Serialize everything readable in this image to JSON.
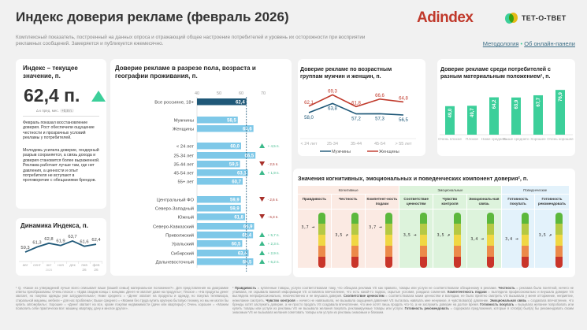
{
  "header": {
    "title": "Индекс доверия рекламе (февраль 2026)",
    "subtitle": "Комплексный показатель, построенный на данных опроса и отражающий общее настроение потребителей и уровень их осторожности при восприятии рекламных сообщений. Замеряется и публикуется ежемесячно.",
    "logo_adindex": "Adindex",
    "logo_tet": "ТЕТ-О-ТВЕТ",
    "link_methodology": "Методология",
    "link_separator": "•",
    "link_panel": "Об онлайн-панели"
  },
  "colors": {
    "accent_green": "#3ccf9a",
    "dark_blue": "#1f5878",
    "light_blue": "#7ec8e8",
    "red": "#c0392b",
    "up": "#3bb98a",
    "down": "#a8302a"
  },
  "index_card": {
    "title": "Индекс – текущее значение, п.",
    "value": "62,4 п.",
    "trend_icon": "triangle-up",
    "delta_label": "Δ к пред. мес.",
    "delta_value": "+0,8 п.",
    "text1": "Февраль показал восстановление доверия. Рост обеспечили ощущение честности и прозрачных условий рекламы у потребителей.",
    "text2": "Молодежь усилила доверие, гендерный разрыв сохраняется, а связь дохода и доверия становится более выраженной. Реклама работает лучше там, где нет давления, а ценности и опыт потребителя не вступают в противоречие с обещаниями брендов."
  },
  "dynamics": {
    "title": "Динамика Индекса, п.",
    "months": [
      "авг",
      "сент",
      "окт",
      "ноя",
      "дек",
      "янв",
      "фев"
    ],
    "values": [
      59.3,
      61.3,
      62.8,
      61.9,
      63.7,
      61.6,
      62.4
    ],
    "labels": [
      "59,3",
      "61,3",
      "62,8",
      "61,9",
      "63,7",
      "61,6",
      "62,4"
    ],
    "year_2025": "2025",
    "year_jan": "26",
    "year_feb": "26"
  },
  "chart_data": [
    {
      "type": "bar",
      "title": "Доверие рекламе в разрезе пола, возраста и географии проживания, п.",
      "orientation": "horizontal",
      "xlim": [
        40,
        70
      ],
      "ticks": [
        "40",
        "50",
        "60",
        "70"
      ],
      "reference_line": 62.4,
      "categories": [
        "Все россияне, 18+",
        "Мужчины",
        "Женщины",
        "< 24 лет",
        "25-34 лет",
        "35-44 лет",
        "45-54 лет",
        "55+ лет",
        "Центральный ФО",
        "Северо-Западный",
        "Южный",
        "Северо-Кавказский",
        "Приволжский",
        "Уральский",
        "Сибирский",
        "Дальневосточный"
      ],
      "values": [
        62.4,
        58.5,
        65.6,
        60.0,
        66.5,
        59.5,
        63.1,
        60.7,
        59.9,
        59.9,
        61.8,
        65.9,
        65.4,
        60.5,
        63.4,
        65.5
      ],
      "labels": [
        "62,4",
        "58,5",
        "65,6",
        "60,0",
        "66,5",
        "59,5",
        "63,1",
        "60,7",
        "59,9",
        "59,9",
        "61,8",
        "65,9",
        "65,4",
        "60,5",
        "63,4",
        "65,5"
      ],
      "deltas": [
        "",
        "",
        "",
        "+ 4,5 п.",
        "",
        "- 2,5 п.",
        "+ 1,9 п.",
        "",
        "- 2,6 п.",
        "",
        "- 6,3 п.",
        "",
        "+ 5,7 п.",
        "+ 2,3 п.",
        "+ 2,9 п.",
        "+ 6,2 п."
      ],
      "delta_dirs": [
        "",
        "",
        "",
        "up",
        "",
        "down",
        "up",
        "",
        "down",
        "",
        "down",
        "",
        "up",
        "up",
        "up",
        "up"
      ]
    },
    {
      "type": "line",
      "title": "Доверие рекламе по возрастным группам мужчин и женщин, п.",
      "categories": [
        "< 24 лет",
        "25-34",
        "35-44",
        "45-54",
        "> 55 лет"
      ],
      "series": [
        {
          "name": "Мужчины",
          "values": [
            58.0,
            63.8,
            57.2,
            57.3,
            56.5
          ],
          "labels": [
            "58,0",
            "63,8",
            "57,2",
            "57,3",
            "56,5"
          ],
          "color": "#1f5878"
        },
        {
          "name": "Женщины",
          "values": [
            62.1,
            69.3,
            61.8,
            66.6,
            64.8
          ],
          "labels": [
            "62,1",
            "69,3",
            "61,8",
            "66,6",
            "64,8"
          ],
          "color": "#c0392b"
        }
      ]
    },
    {
      "type": "bar",
      "title": "Доверие рекламе среди потребителей с разным материальным положением¹, п.",
      "categories": [
        "Очень плохое",
        "Плохое",
        "Ниже среднего",
        "Выше среднего",
        "Хорошее",
        "Очень хорошее"
      ],
      "values": [
        49.0,
        49.7,
        64.2,
        63.9,
        67.7,
        76.9
      ],
      "labels": [
        "49,0",
        "49,7",
        "64,2",
        "63,9",
        "67,7",
        "76,9"
      ]
    }
  ],
  "components": {
    "title": "Значения когнитивных, эмоциональных и поведенческих компонент доверия², п.",
    "groups": [
      {
        "name": "Когнитивные",
        "bg": "#fbeae3",
        "items": [
          {
            "label": "Правдивость",
            "value": 3.7,
            "text": "3,7",
            "arrow": "→"
          },
          {
            "label": "Честность",
            "value": 3.5,
            "text": "3,5",
            "arrow": "↗"
          },
          {
            "label": "Компетент-ность подачи",
            "value": 3.7,
            "text": "3,7",
            "arrow": "→"
          }
        ]
      },
      {
        "name": "Эмоциональные",
        "bg": "#ddf3dc",
        "items": [
          {
            "label": "Соответствие ценностям",
            "value": 3.5,
            "text": "3,5",
            "arrow": "→"
          },
          {
            "label": "Чувство контроля",
            "value": 3.5,
            "text": "3,5",
            "arrow": "↗"
          },
          {
            "label": "Эмоциональ-ная связь",
            "value": 3.4,
            "text": "3,4",
            "arrow": "→"
          }
        ]
      },
      {
        "name": "Поведенческие",
        "bg": "#e3f2fb",
        "items": [
          {
            "label": "Готовность покупать",
            "value": 3.4,
            "text": "3,4",
            "arrow": "→"
          },
          {
            "label": "Готовность рекомендовать",
            "value": 3.5,
            "text": "3,5",
            "arrow": "↗"
          }
        ]
      }
    ],
    "scale_colors": [
      "#5cb83c",
      "#b5c944",
      "#f0d744",
      "#ec8a4a",
      "#c9352a"
    ]
  },
  "footnotes": {
    "note1": "¹ Q. «Какое из утверждений лучше всего описывает ваше (вашей семьи) материальное положение?». Для представления на диаграмме ответы преобразованы: Очень плохое = «Едва сводим концы с концами. Денег не хватает даже на продукты»; Плохое = «На продукты денег хватает, но покупка одежды уже затруднительна»; Ниже среднего = «Денег хватает на продукты и одежду, но покупка телевизора, стиральной машины, мебели – для нас проблема»; Выше среднего = «Можем без труда купить крупную бытовую технику, но мы не могли бы купить автомобиль»; Хорошее = «Денег хватает на все, кроме покупки недвижимости (дачи или квартиры)»; Очень хорошее = «Можем позволить себе практически все: машину, квартиру, дачу и многое другое».",
    "note2_prefix": "²",
    "note2": [
      {
        "term": "Правдивость",
        "text": " = купленные товары, услуги соответствовали тому, что обещала реклама VS как правило, товары или услуги не соответствовали обещанному в рекламе. "
      },
      {
        "term": "Честность",
        "text": " = реклама была понятной, ничего не утаивала, не скрывала важной информации VS оставляла впечатление, что есть какой-то подвох, скрытые условия, рождала сомнения. "
      },
      {
        "term": "Компетентность подачи",
        "text": " = выглядела профессионально и внушала доверие VS выглядела непрофессионально, некачественно и не внушала доверия. "
      },
      {
        "term": "Соответствие ценностям",
        "text": " = соответствовала моим ценностям и взглядам, ее было приятно смотреть VS вызывала у меня отторжение, неприятие, нежелание смотреть. "
      },
      {
        "term": "Чувство контроля",
        "text": " = ничего не навязывала, не вызывала ощущения давления VS пыталась навязать мне ненужное, я чувствовал(а) давление. "
      },
      {
        "term": "Эмоциональная связь",
        "text": " = создавала впечатление, что бренды хотят заслужить доверие, а не просто продать VS создавала впечатление, что мне хотят лишь продать что-то, а не заслужить доверие на долгое время. "
      },
      {
        "term": "Готовность покупать",
        "text": " = вызывала желание попробовать или купить товары или услуги из рекламы VS не вызывала желания покупать рекламируемые товары или услуги. "
      },
      {
        "term": "Готовность рекомендовать",
        "text": " = содержала предложения, которые я готов(а) был(а) бы рекомендовать своим знакомым VS не вызывала желания советовать товары или услуги из рекламы знакомым и близким."
      }
    ]
  }
}
